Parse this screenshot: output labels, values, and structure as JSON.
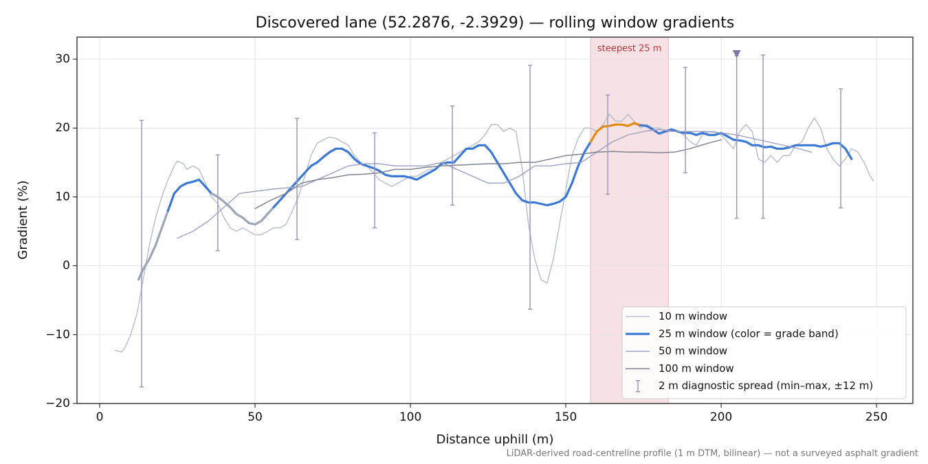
{
  "chart_data": {
    "type": "line",
    "title": "Discovered lane (52.2876, -2.3929) — rolling window gradients",
    "xlabel": "Distance uphill (m)",
    "ylabel": "Gradient (%)",
    "footnote": "LiDAR-derived road-centreline profile (1 m DTM, bilinear) — not a surveyed asphalt gradient",
    "xlim": [
      -7.3,
      261.7
    ],
    "ylim": [
      -20,
      33.2
    ],
    "xticks": [
      0,
      50,
      100,
      150,
      200,
      250
    ],
    "yticks": [
      {
        "value": -20,
        "label": "−20"
      },
      {
        "value": -10,
        "label": "−10"
      },
      0,
      10,
      20,
      30
    ],
    "grid": true,
    "legend": "lower right",
    "highlight": {
      "x": [
        158,
        183
      ],
      "label": "steepest 25 m",
      "color": "#e8b4bc",
      "label_color": "#c0303c"
    },
    "series": [
      {
        "name": "10 m window",
        "color": "#b8bfcc",
        "width": 1.5,
        "x": [
          5,
          7,
          8,
          10,
          12,
          14,
          16,
          18,
          20,
          22,
          24,
          25,
          27,
          28,
          30,
          32,
          34,
          36,
          38,
          40,
          42,
          44,
          46,
          48,
          50,
          52,
          54,
          56,
          58,
          60,
          62,
          64,
          66,
          68,
          70,
          72,
          74,
          76,
          78,
          80,
          82,
          84,
          86,
          88,
          90,
          92,
          94,
          96,
          98,
          100,
          102,
          104,
          106,
          108,
          110,
          112,
          114,
          116,
          118,
          120,
          122,
          124,
          126,
          128,
          130,
          132,
          134,
          136,
          138,
          140,
          142,
          144,
          146,
          148,
          150,
          152,
          154,
          156,
          158,
          160,
          162,
          164,
          166,
          168,
          170,
          172,
          174,
          176,
          178,
          180,
          182,
          184,
          186,
          188,
          190,
          192,
          194,
          196,
          198,
          200,
          202,
          204,
          206,
          208,
          210,
          212,
          214,
          216,
          218,
          220,
          222,
          224,
          226,
          228,
          230,
          232,
          234,
          236,
          238,
          240,
          242,
          244,
          246,
          248,
          249
        ],
        "values": [
          -12.3,
          -12.5,
          -12,
          -10,
          -7,
          -2,
          3,
          7,
          10,
          12.5,
          14.5,
          15.2,
          14.8,
          14,
          14.5,
          14,
          12,
          10,
          9,
          7,
          5.5,
          5,
          5.5,
          5,
          4.5,
          4.5,
          5,
          5.5,
          5.5,
          6,
          8,
          10,
          13,
          16,
          17.8,
          18.3,
          18.7,
          18.5,
          18,
          17.5,
          16,
          15,
          14.5,
          13.5,
          12.5,
          12,
          11.5,
          12,
          12.5,
          13,
          13,
          13.5,
          14,
          14,
          15,
          15.5,
          16,
          16.5,
          17,
          17.5,
          18,
          19,
          20.5,
          20.5,
          19.5,
          20,
          19.5,
          14,
          6,
          1,
          -2,
          -2.5,
          1,
          6,
          11,
          16,
          18.5,
          20,
          20,
          19.5,
          20.5,
          22,
          21,
          21,
          22,
          21,
          20,
          20.5,
          20,
          20,
          19.5,
          19.5,
          19.5,
          19,
          18,
          17.5,
          19,
          19.5,
          19.5,
          19,
          18,
          17,
          19.5,
          20.5,
          19.5,
          15.5,
          15,
          16,
          15,
          16,
          16,
          17.5,
          18,
          20,
          21.5,
          20,
          17,
          15.5,
          14.5,
          15.5,
          17,
          16.5,
          15,
          13,
          12.3
        ]
      },
      {
        "name": "25 m window (color = grade band)",
        "color": "#3a78d4",
        "width": 3.2,
        "x": [
          12.5,
          14,
          16,
          18,
          20,
          22,
          24,
          26,
          28,
          30,
          32,
          34,
          36,
          38,
          40,
          42,
          44,
          46,
          48,
          50,
          52,
          54,
          56,
          58,
          60,
          62,
          64,
          66,
          68,
          70,
          72,
          74,
          76,
          78,
          80,
          82,
          84,
          86,
          88,
          90,
          92,
          94,
          96,
          98,
          100,
          102,
          104,
          106,
          108,
          110,
          112,
          114,
          116,
          118,
          120,
          122,
          124,
          126,
          128,
          130,
          132,
          134,
          136,
          138,
          140,
          142,
          144,
          146,
          148,
          150,
          152,
          154,
          156,
          158,
          160,
          162,
          164,
          166,
          168,
          170,
          172,
          174,
          176,
          178,
          180,
          182,
          184,
          186,
          188,
          190,
          192,
          194,
          196,
          198,
          200,
          202,
          204,
          206,
          208,
          210,
          212,
          214,
          216,
          218,
          220,
          222,
          224,
          226,
          228,
          230,
          232,
          234,
          236,
          238,
          240,
          242
        ],
        "values": [
          -2,
          -0.5,
          1,
          3,
          5.5,
          8,
          10.5,
          11.5,
          12,
          12.2,
          12.5,
          11.5,
          10.5,
          10,
          9.3,
          8.5,
          7.5,
          7,
          6.2,
          6,
          6.5,
          7.5,
          8.5,
          9.5,
          10.5,
          11.5,
          12.5,
          13.5,
          14.5,
          15,
          15.8,
          16.5,
          17,
          17,
          16.5,
          15.5,
          14.8,
          14.5,
          14.2,
          13.8,
          13.2,
          13,
          13,
          13,
          12.8,
          12.5,
          13,
          13.5,
          14,
          14.8,
          15,
          15,
          16,
          17,
          17,
          17.5,
          17.5,
          16.5,
          15,
          13.5,
          12,
          10.5,
          9.5,
          9.2,
          9.2,
          9,
          8.8,
          9,
          9.3,
          10,
          12,
          14.5,
          16.5,
          18,
          19.5,
          20.2,
          20.3,
          20.5,
          20.5,
          20.3,
          20.7,
          20.4,
          20.3,
          19.8,
          19.2,
          19.5,
          19.8,
          19.5,
          19.3,
          19.3,
          19,
          19.3,
          19,
          19,
          19.3,
          18.8,
          18.3,
          18.2,
          18,
          17.5,
          17.5,
          17.2,
          17.3,
          17,
          17,
          17.2,
          17.5,
          17.5,
          17.5,
          17.5,
          17.3,
          17.5,
          17.8,
          17.8,
          17,
          15.5
        ],
        "point_colors": [
          "#9aa5b8",
          "#9aa5b8",
          "#9aa5b8",
          "#9aa5b8",
          "#9aa5b8",
          "#9aa5b8",
          "#3a78d4",
          "#3a78d4",
          "#3a78d4",
          "#3a78d4",
          "#3a78d4",
          "#3a78d4",
          "#3a78d4",
          "#9aa5b8",
          "#9aa5b8",
          "#9aa5b8",
          "#9aa5b8",
          "#9aa5b8",
          "#9aa5b8",
          "#9aa5b8",
          "#9aa5b8",
          "#9aa5b8",
          "#9aa5b8",
          "#3a78d4",
          "#3a78d4",
          "#3a78d4",
          "#3a78d4",
          "#3a78d4",
          "#3a78d4",
          "#3a78d4",
          "#3a78d4",
          "#3a78d4",
          "#3a78d4",
          "#3a78d4",
          "#3a78d4",
          "#3a78d4",
          "#3a78d4",
          "#3a78d4",
          "#3a78d4",
          "#3a78d4",
          "#3a78d4",
          "#3a78d4",
          "#3a78d4",
          "#3a78d4",
          "#3a78d4",
          "#3a78d4",
          "#3a78d4",
          "#3a78d4",
          "#3a78d4",
          "#3a78d4",
          "#3a78d4",
          "#3a78d4",
          "#3a78d4",
          "#3a78d4",
          "#3a78d4",
          "#3a78d4",
          "#3a78d4",
          "#3a78d4",
          "#3a78d4",
          "#3a78d4",
          "#3a78d4",
          "#3a78d4",
          "#3a78d4",
          "#3a78d4",
          "#3a78d4",
          "#3a78d4",
          "#3a78d4",
          "#3a78d4",
          "#3a78d4",
          "#3a78d4",
          "#3a78d4",
          "#3a78d4",
          "#3a78d4",
          "#3a78d4",
          "#e08a10",
          "#e08a10",
          "#e08a10",
          "#e08a10",
          "#e08a10",
          "#e08a10",
          "#e08a10",
          "#e08a10",
          "#3a78d4",
          "#3a78d4",
          "#3a78d4",
          "#3a78d4",
          "#3a78d4",
          "#3a78d4",
          "#3a78d4",
          "#3a78d4",
          "#3a78d4",
          "#3a78d4",
          "#3a78d4",
          "#3a78d4",
          "#3a78d4",
          "#3a78d4",
          "#3a78d4",
          "#3a78d4",
          "#3a78d4",
          "#3a78d4",
          "#3a78d4",
          "#3a78d4",
          "#3a78d4",
          "#3a78d4",
          "#3a78d4",
          "#3a78d4",
          "#3a78d4",
          "#3a78d4",
          "#3a78d4",
          "#3a78d4",
          "#3a78d4",
          "#3a78d4",
          "#3a78d4",
          "#3a78d4",
          "#3a78d4",
          "#3a78d4"
        ]
      },
      {
        "name": "50 m window",
        "color": "#a0a3c4",
        "width": 1.5,
        "x": [
          25,
          30,
          35,
          40,
          45,
          50,
          55,
          60,
          65,
          70,
          75,
          80,
          85,
          90,
          95,
          100,
          105,
          110,
          115,
          120,
          125,
          130,
          135,
          140,
          145,
          150,
          155,
          160,
          165,
          170,
          175,
          180,
          185,
          190,
          195,
          200,
          205,
          210,
          215,
          220,
          225,
          229
        ],
        "values": [
          4,
          5,
          6.5,
          8.5,
          10.5,
          10.8,
          11.1,
          11.3,
          11.5,
          12.5,
          13.5,
          14.5,
          14.8,
          14.8,
          14.5,
          14.5,
          14.5,
          15,
          14,
          13,
          12,
          12,
          13,
          14.5,
          14.5,
          14.8,
          15,
          16.5,
          18,
          19,
          19.5,
          19.8,
          19.5,
          19.5,
          19.5,
          19.3,
          19,
          18.5,
          18,
          17.5,
          17,
          16.5
        ]
      },
      {
        "name": "100 m window",
        "color": "#7f8290",
        "width": 1.5,
        "x": [
          50,
          55,
          60,
          65,
          70,
          75,
          80,
          85,
          90,
          95,
          100,
          105,
          110,
          115,
          120,
          125,
          130,
          135,
          140,
          145,
          150,
          155,
          160,
          165,
          170,
          175,
          180,
          185,
          190,
          195,
          200
        ],
        "values": [
          8.3,
          9.5,
          10.5,
          12,
          12.5,
          12.8,
          13.2,
          13.3,
          13.5,
          14,
          14,
          14.3,
          14.5,
          14.6,
          14.7,
          14.8,
          14.8,
          15,
          15,
          15.5,
          16,
          16.2,
          16.5,
          16.6,
          16.5,
          16.5,
          16.4,
          16.5,
          17,
          17.7,
          18.3
        ]
      }
    ],
    "error_bars": {
      "name": "2 m diagnostic spread (min–max, ±12 m)",
      "color": "#9b97c0",
      "x": [
        13.5,
        38,
        63.5,
        88.5,
        113.5,
        138.5,
        163.5,
        188.5,
        205,
        213.5,
        238.5
      ],
      "low": [
        -17.6,
        2.2,
        3.8,
        5.5,
        8.8,
        -6.3,
        10.4,
        13.5,
        6.9,
        6.9,
        8.4
      ],
      "high": [
        21.1,
        16.1,
        21.4,
        19.3,
        23.2,
        29.1,
        24.8,
        28.8,
        30.5,
        30.6,
        25.7
      ]
    },
    "marker": {
      "x": 205,
      "y": 30.8,
      "color": "#7d74a8"
    }
  }
}
